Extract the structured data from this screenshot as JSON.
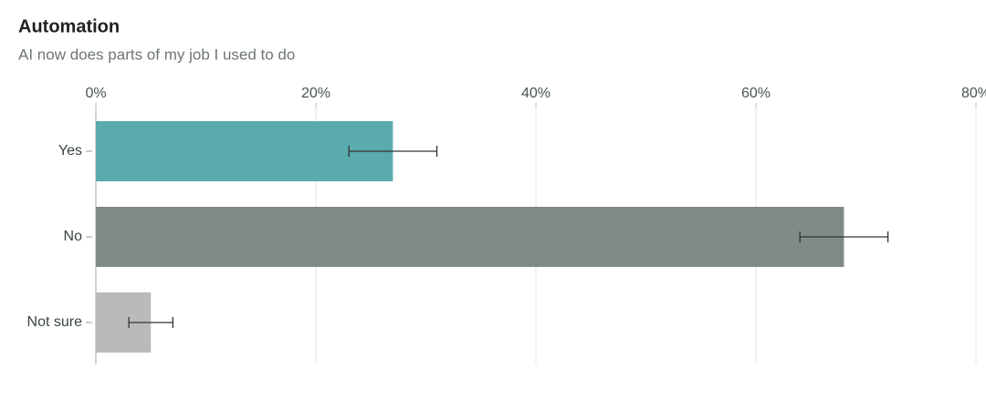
{
  "chart_data": {
    "type": "hbar",
    "title": "Automation",
    "subtitle": "AI now does parts of my job I used to do",
    "categories": [
      "Yes",
      "No",
      "Not sure"
    ],
    "values": [
      27,
      68,
      5
    ],
    "errors": [
      4,
      4,
      2
    ],
    "colors": [
      "#5aabab",
      "#7f8a89",
      "#b8bbba"
    ],
    "xlim": [
      0,
      80
    ],
    "xticks": [
      {
        "value": 0,
        "label": "0%"
      },
      {
        "value": 20,
        "label": "20%"
      },
      {
        "value": 40,
        "label": "40%"
      },
      {
        "value": 60,
        "label": "60%"
      },
      {
        "value": 80,
        "label": "80%"
      }
    ],
    "grid": true
  }
}
